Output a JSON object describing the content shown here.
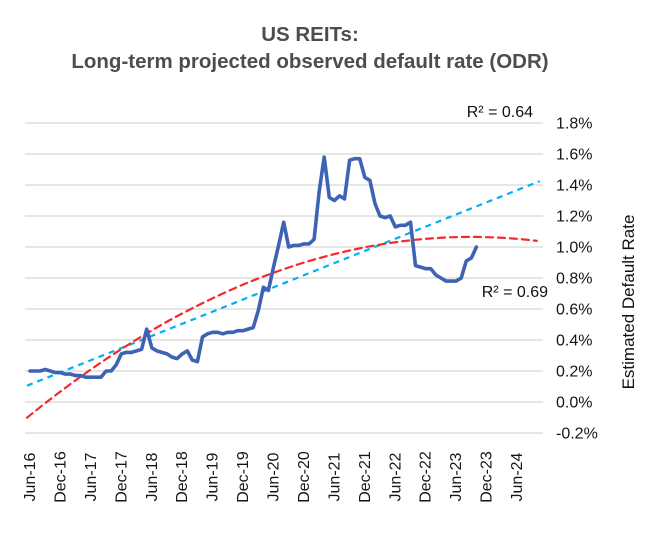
{
  "title": {
    "line1": "US REITs:",
    "line2": "Long-term projected observed default rate (ODR)"
  },
  "y_axis": {
    "title": "Estimated Default Rate",
    "min": -0.2,
    "max": 1.8,
    "step": 0.2,
    "tick_labels": [
      "1.8%",
      "1.6%",
      "1.4%",
      "1.2%",
      "1.0%",
      "0.8%",
      "0.6%",
      "0.4%",
      "0.2%",
      "0.0%",
      "-0.2%"
    ]
  },
  "x_axis": {
    "tick_labels": [
      "Jun-16",
      "Dec-16",
      "Jun-17",
      "Dec-17",
      "Jun-18",
      "Dec-18",
      "Jun-19",
      "Dec-19",
      "Jun-20",
      "Dec-20",
      "Jun-21",
      "Dec-21",
      "Jun-22",
      "Dec-22",
      "Jun-23",
      "Dec-23",
      "Jun-24"
    ]
  },
  "annotations": {
    "linear_r2": "R² = 0.64",
    "poly_r2": "R² = 0.69"
  },
  "colors": {
    "odr_line": "#3E63B5",
    "linear_trend": "#00B0F0",
    "poly_trend": "#F42A2A",
    "gridline": "#D6D6D6",
    "title_text": "#4D4D4D"
  },
  "chart_data": {
    "type": "line",
    "title": "US REITs: Long-term projected observed default rate (ODR)",
    "ylabel": "Estimated Default Rate",
    "ylim": [
      -0.2,
      1.8
    ],
    "grid": true,
    "legend": "none",
    "x_start_month": "Jun-16",
    "x_frequency": "monthly",
    "x_last_data_month": "Oct-23",
    "series": [
      {
        "name": "Observed default rate (ODR)",
        "style": "solid",
        "color": "#3E63B5",
        "values_percent": [
          0.2,
          0.2,
          0.2,
          0.21,
          0.2,
          0.19,
          0.19,
          0.18,
          0.18,
          0.17,
          0.17,
          0.16,
          0.16,
          0.16,
          0.16,
          0.2,
          0.2,
          0.24,
          0.31,
          0.32,
          0.32,
          0.33,
          0.34,
          0.47,
          0.35,
          0.33,
          0.32,
          0.31,
          0.29,
          0.28,
          0.31,
          0.33,
          0.27,
          0.26,
          0.42,
          0.44,
          0.45,
          0.45,
          0.44,
          0.45,
          0.45,
          0.46,
          0.46,
          0.47,
          0.48,
          0.59,
          0.74,
          0.72,
          0.87,
          1.01,
          1.16,
          1.0,
          1.01,
          1.01,
          1.02,
          1.02,
          1.05,
          1.36,
          1.58,
          1.32,
          1.3,
          1.33,
          1.31,
          1.56,
          1.57,
          1.57,
          1.45,
          1.43,
          1.28,
          1.2,
          1.19,
          1.2,
          1.13,
          1.14,
          1.14,
          1.16,
          0.88,
          0.87,
          0.86,
          0.86,
          0.82,
          0.8,
          0.78,
          0.78,
          0.78,
          0.8,
          0.91,
          0.93,
          1.0
        ]
      },
      {
        "name": "Linear trendline",
        "style": "dashed",
        "color": "#00B0F0",
        "r2": 0.64,
        "start_value_percent": 0.105,
        "end_value_percent": 1.425,
        "start_month_offset": -0.6,
        "end_month_offset": 100.5
      },
      {
        "name": "Polynomial trendline (order 2)",
        "style": "dashed",
        "color": "#F42A2A",
        "r2": 0.69,
        "peak_value_percent": 1.065,
        "peak_month_offset": 87,
        "curvature": 0.000152,
        "start_value_percent": -0.1,
        "end_value_percent": 1.04,
        "start_month_offset": -0.6,
        "end_month_offset": 100.5
      }
    ]
  }
}
